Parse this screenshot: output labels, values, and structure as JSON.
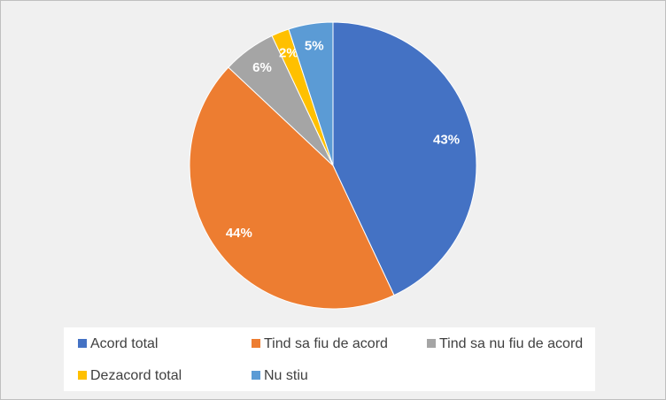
{
  "chart_data": {
    "type": "pie",
    "categories": [
      "Acord total",
      "Tind sa fiu de acord",
      "Tind sa nu fiu de acord",
      "Dezacord total",
      "Nu stiu"
    ],
    "values": [
      43,
      44,
      6,
      2,
      5
    ],
    "value_labels": [
      "43%",
      "44%",
      "6%",
      "2%",
      "5%"
    ],
    "colors": [
      "#4472c4",
      "#ed7d31",
      "#a5a5a5",
      "#ffc000",
      "#5b9bd5"
    ],
    "legend": "bottom"
  }
}
